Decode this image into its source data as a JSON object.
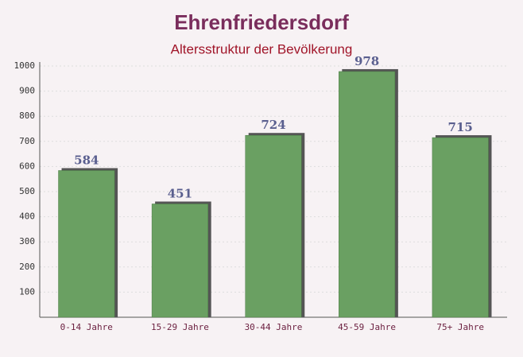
{
  "chart_data": {
    "type": "bar",
    "title": "Ehrenfriedersdorf",
    "subtitle": "Altersstruktur der Bevölkerung",
    "categories": [
      "0-14 Jahre",
      "15-29 Jahre",
      "30-44 Jahre",
      "45-59 Jahre",
      "75+ Jahre"
    ],
    "values": [
      584,
      451,
      724,
      978,
      715
    ],
    "color": "#6aa062",
    "ylim": [
      0,
      1000
    ],
    "yticks": [
      100,
      200,
      300,
      400,
      500,
      600,
      700,
      800,
      900,
      1000
    ],
    "grid": true
  }
}
